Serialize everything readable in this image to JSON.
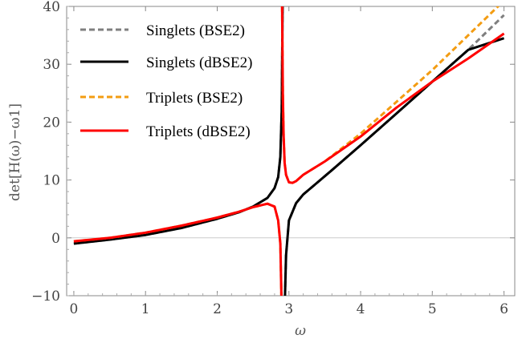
{
  "chart_data": {
    "type": "line",
    "xlabel": "ω",
    "ylabel": "det[H(ω)−ω1]",
    "xlim": [
      -0.1,
      6.15
    ],
    "ylim": [
      -10,
      40
    ],
    "x_ticks": [
      "0",
      "1",
      "2",
      "3",
      "4",
      "5",
      "6"
    ],
    "y_ticks": [
      "−10",
      "0",
      "10",
      "20",
      "30",
      "40"
    ],
    "legend_position": "top-left",
    "series": [
      {
        "name": "Singlets (BSE2)",
        "style": "dashed",
        "color": "#7f7f7f",
        "x": [
          0,
          0.5,
          1.0,
          1.5,
          2.0,
          2.3,
          2.5,
          2.7,
          2.8,
          2.85,
          2.88,
          2.9,
          2.912,
          2.945,
          2.96,
          3.0,
          3.1,
          3.2,
          3.4,
          3.6,
          4.0,
          4.5,
          5.0,
          5.5,
          6.0
        ],
        "y": [
          -1.0,
          -0.3,
          0.5,
          1.7,
          3.3,
          4.4,
          5.4,
          6.9,
          8.6,
          10.5,
          14.0,
          22.0,
          40.0,
          -10.0,
          -3.0,
          3.0,
          6.0,
          7.5,
          9.6,
          11.7,
          16.0,
          21.5,
          27.0,
          32.5,
          38.5
        ]
      },
      {
        "name": "Singlets (dBSE2)",
        "style": "solid",
        "color": "#000000",
        "x": [
          0,
          0.5,
          1.0,
          1.5,
          2.0,
          2.3,
          2.5,
          2.7,
          2.8,
          2.85,
          2.88,
          2.9,
          2.912,
          2.945,
          2.96,
          3.0,
          3.1,
          3.2,
          3.4,
          3.6,
          4.0,
          4.5,
          5.0,
          5.5,
          6.0
        ],
        "y": [
          -1.0,
          -0.3,
          0.5,
          1.7,
          3.3,
          4.4,
          5.4,
          6.9,
          8.6,
          10.5,
          14.0,
          22.0,
          40.0,
          -10.0,
          -3.0,
          3.0,
          6.0,
          7.5,
          9.6,
          11.7,
          16.0,
          21.5,
          27.0,
          32.5,
          34.5
        ]
      },
      {
        "name": "Triplets (BSE2)",
        "style": "dashed",
        "color": "#f39c12",
        "x": [
          0,
          0.5,
          1.0,
          1.5,
          2.0,
          2.3,
          2.5,
          2.7,
          2.8,
          2.85,
          2.88,
          2.895,
          2.905,
          2.915,
          2.925,
          2.94,
          2.96,
          3.0,
          3.05,
          3.1,
          3.2,
          3.5,
          4.0,
          4.5,
          5.0,
          5.5,
          6.0
        ],
        "y": [
          -0.6,
          0.0,
          0.9,
          2.1,
          3.5,
          4.5,
          5.3,
          5.9,
          5.4,
          3.0,
          -1.0,
          -10.0,
          40.0,
          25.0,
          18.0,
          13.0,
          10.9,
          9.6,
          9.5,
          9.8,
          10.9,
          13.2,
          18.0,
          23.5,
          29.0,
          35.0,
          41.0
        ]
      },
      {
        "name": "Triplets (dBSE2)",
        "style": "solid",
        "color": "#ff0000",
        "x": [
          0,
          0.5,
          1.0,
          1.5,
          2.0,
          2.3,
          2.5,
          2.7,
          2.8,
          2.85,
          2.88,
          2.895,
          2.905,
          2.915,
          2.925,
          2.94,
          2.96,
          3.0,
          3.05,
          3.1,
          3.2,
          3.5,
          4.0,
          4.5,
          5.0,
          5.5,
          6.0
        ],
        "y": [
          -0.6,
          0.0,
          0.9,
          2.1,
          3.5,
          4.5,
          5.3,
          5.9,
          5.4,
          3.0,
          -1.0,
          -10.0,
          40.0,
          25.0,
          18.0,
          13.0,
          10.9,
          9.6,
          9.5,
          9.8,
          10.9,
          13.2,
          17.5,
          22.5,
          27.0,
          31.0,
          35.3
        ]
      }
    ]
  }
}
